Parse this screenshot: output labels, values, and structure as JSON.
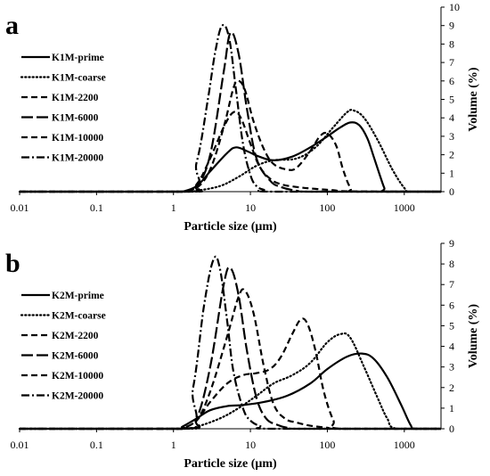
{
  "chart_data": [
    {
      "type": "line",
      "panel_label": "a",
      "xlabel": "Particle size (μm)",
      "ylabel": "Volume (%)",
      "xscale": "log",
      "xlim": [
        0.01,
        3000
      ],
      "ylim": [
        0,
        10
      ],
      "x_tick_labels": [
        "0.01",
        "0.1",
        "1",
        "10",
        "100",
        "1000"
      ],
      "y_tick_labels": [
        "0",
        "1",
        "2",
        "3",
        "4",
        "5",
        "6",
        "7",
        "8",
        "9",
        "10"
      ],
      "y_axis_side": "right",
      "legend_position": "left",
      "series": [
        {
          "name": "K1M-prime",
          "dash": "solid",
          "x": [
            0.01,
            1.1,
            1.3,
            2,
            3,
            5,
            6.5,
            9,
            13,
            20,
            35,
            60,
            100,
            150,
            200,
            260,
            330,
            400,
            480,
            550,
            600,
            3000
          ],
          "y": [
            0,
            0,
            0,
            0.3,
            1.1,
            2.1,
            2.4,
            2.2,
            1.9,
            1.7,
            1.9,
            2.4,
            3.0,
            3.5,
            3.75,
            3.6,
            2.9,
            1.9,
            0.9,
            0.2,
            0,
            0
          ]
        },
        {
          "name": "K1M-coarse",
          "dash": "dotted",
          "x": [
            0.01,
            1.5,
            2,
            4,
            7,
            12,
            20,
            40,
            70,
            120,
            180,
            220,
            300,
            450,
            700,
            1000,
            1200,
            3000
          ],
          "y": [
            0,
            0,
            0.05,
            0.3,
            0.8,
            1.4,
            1.7,
            1.8,
            2.4,
            3.5,
            4.3,
            4.4,
            4.0,
            2.8,
            1.2,
            0.2,
            0,
            0
          ]
        },
        {
          "name": "K1M-2200",
          "dash": "dash",
          "x": [
            0.01,
            1.3,
            2,
            3,
            4.5,
            6,
            7,
            8.5,
            11,
            15,
            20,
            30,
            40,
            60,
            80,
            100,
            130,
            160,
            200,
            250,
            3000
          ],
          "y": [
            0,
            0,
            0.2,
            1.2,
            3.5,
            5.6,
            6.0,
            5.5,
            3.8,
            2.3,
            1.5,
            1.2,
            1.3,
            2.2,
            3.0,
            3.15,
            2.5,
            1.2,
            0.2,
            0,
            0
          ]
        },
        {
          "name": "K1M-6000",
          "dash": "longdash",
          "x": [
            0.01,
            1.3,
            2,
            3,
            4.5,
            5.5,
            7,
            9,
            12,
            18,
            25,
            40,
            70,
            3000
          ],
          "y": [
            0,
            0,
            0.3,
            2.0,
            6.5,
            8.6,
            7.5,
            4.5,
            1.8,
            0.6,
            0.25,
            0.05,
            0,
            0
          ]
        },
        {
          "name": "K1M-10000",
          "dash": "dash",
          "x": [
            0.01,
            1.3,
            2,
            3,
            4.5,
            6,
            7.5,
            10,
            13,
            18,
            25,
            40,
            70,
            120,
            200,
            3000
          ],
          "y": [
            0,
            0,
            0.4,
            1.8,
            3.5,
            4.3,
            4.0,
            2.6,
            1.4,
            0.7,
            0.4,
            0.25,
            0.15,
            0.08,
            0.02,
            0
          ]
        },
        {
          "name": "K1M-20000",
          "dash": "dashdot",
          "x": [
            0.01,
            1.3,
            2,
            2.8,
            3.5,
            4.3,
            5.3,
            6.5,
            8,
            10,
            12,
            15,
            20,
            3000
          ],
          "y": [
            0,
            0,
            1.6,
            5.0,
            7.6,
            9.0,
            8.3,
            5.5,
            2.6,
            0.9,
            0.3,
            0.1,
            0,
            0
          ]
        }
      ]
    },
    {
      "type": "line",
      "panel_label": "b",
      "xlabel": "Particle size (μm)",
      "ylabel": "Volume (%)",
      "xscale": "log",
      "xlim": [
        0.01,
        3000
      ],
      "ylim": [
        0,
        9
      ],
      "x_tick_labels": [
        "0.01",
        "0.1",
        "1",
        "10",
        "100",
        "1000"
      ],
      "y_tick_labels": [
        "0",
        "1",
        "2",
        "3",
        "4",
        "5",
        "6",
        "7",
        "8",
        "9"
      ],
      "y_axis_side": "right",
      "legend_position": "left",
      "series": [
        {
          "name": "K2M-prime",
          "dash": "solid",
          "x": [
            0.01,
            1.05,
            1.3,
            2,
            3,
            5,
            8,
            15,
            30,
            60,
            100,
            180,
            280,
            400,
            600,
            900,
            1200,
            1400,
            3000
          ],
          "y": [
            0,
            0,
            0.1,
            0.5,
            0.9,
            1.1,
            1.15,
            1.3,
            1.6,
            2.2,
            2.9,
            3.5,
            3.65,
            3.4,
            2.5,
            1.2,
            0.2,
            0,
            0
          ]
        },
        {
          "name": "K2M-coarse",
          "dash": "dotted",
          "x": [
            0.01,
            1.3,
            2,
            4,
            7,
            12,
            20,
            35,
            60,
            100,
            150,
            200,
            300,
            450,
            600,
            800,
            3000
          ],
          "y": [
            0,
            0,
            0.1,
            0.5,
            1.0,
            1.6,
            2.2,
            2.6,
            3.2,
            4.2,
            4.6,
            4.4,
            3.0,
            1.5,
            0.5,
            0,
            0
          ]
        },
        {
          "name": "K2M-2200",
          "dash": "dash",
          "x": [
            0.01,
            1.3,
            2,
            3,
            5,
            8,
            12,
            18,
            25,
            35,
            45,
            55,
            70,
            90,
            120,
            150,
            3000
          ],
          "y": [
            0,
            0,
            0.4,
            1.3,
            2.2,
            2.6,
            2.7,
            2.9,
            3.5,
            4.6,
            5.3,
            5.1,
            3.8,
            1.8,
            0.4,
            0,
            0
          ]
        },
        {
          "name": "K2M-6000",
          "dash": "longdash",
          "x": [
            0.01,
            1.3,
            2,
            3,
            4.5,
            5.5,
            7,
            9,
            12,
            16,
            22,
            30,
            50,
            3000
          ],
          "y": [
            0,
            0,
            0.5,
            3.0,
            7.0,
            7.8,
            6.5,
            3.8,
            1.5,
            0.5,
            0.2,
            0.05,
            0,
            0
          ]
        },
        {
          "name": "K2M-10000",
          "dash": "dash",
          "x": [
            0.01,
            1.3,
            2,
            3,
            5,
            7,
            8.5,
            11,
            15,
            20,
            28,
            40,
            60,
            100,
            150,
            3000
          ],
          "y": [
            0,
            0,
            0.4,
            1.8,
            4.5,
            6.4,
            6.7,
            5.6,
            3.0,
            1.2,
            0.5,
            0.3,
            0.15,
            0.05,
            0,
            0
          ]
        },
        {
          "name": "K2M-20000",
          "dash": "dashdot",
          "x": [
            0.01,
            1.2,
            1.8,
            2.5,
            3.3,
            4,
            5,
            6,
            8,
            10,
            14,
            20,
            3000
          ],
          "y": [
            0,
            0,
            2.0,
            6.0,
            8.2,
            7.8,
            5.2,
            2.8,
            1.0,
            0.4,
            0.1,
            0,
            0
          ]
        }
      ]
    }
  ]
}
